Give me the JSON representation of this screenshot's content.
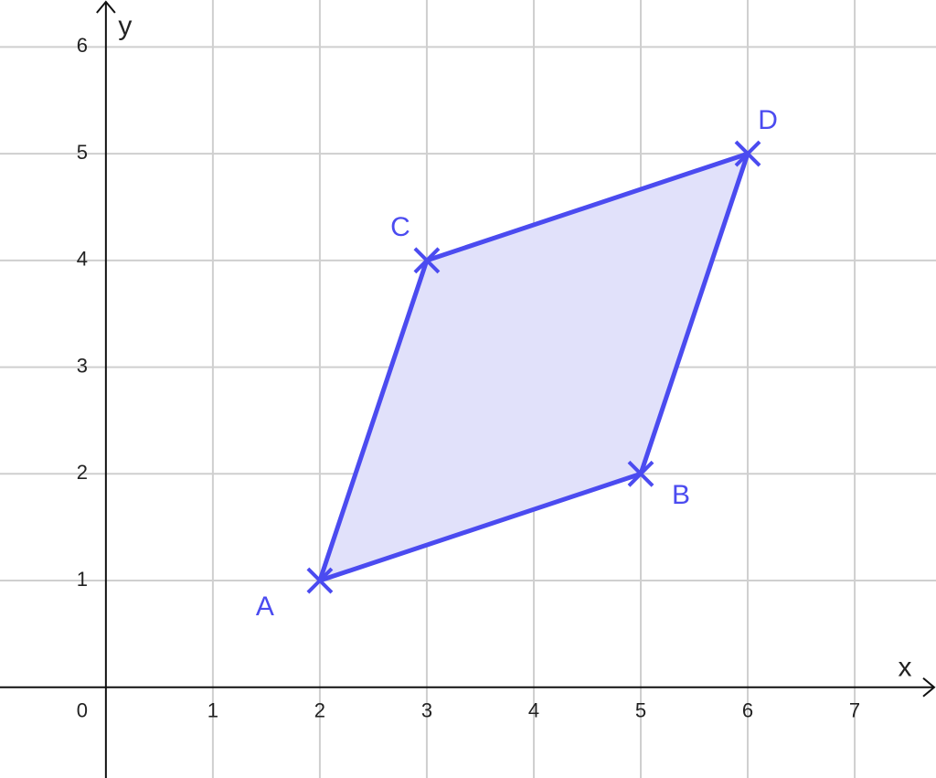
{
  "chart_data": {
    "type": "polygon",
    "x_label": "x",
    "y_label": "y",
    "point_labels": [
      "A",
      "B",
      "D",
      "C"
    ],
    "x": [
      2,
      5,
      6,
      3
    ],
    "values": [
      1,
      2,
      5,
      4
    ],
    "color": "#4b4bf0",
    "fill": "#e1e1fa",
    "xlim": [
      -0.99,
      7.76
    ],
    "ylim": [
      -0.85,
      6.44
    ],
    "xticks": [
      0,
      1,
      2,
      3,
      4,
      5,
      6,
      7
    ],
    "yticks": [
      1,
      2,
      3,
      4,
      5,
      6
    ],
    "grid": true
  }
}
